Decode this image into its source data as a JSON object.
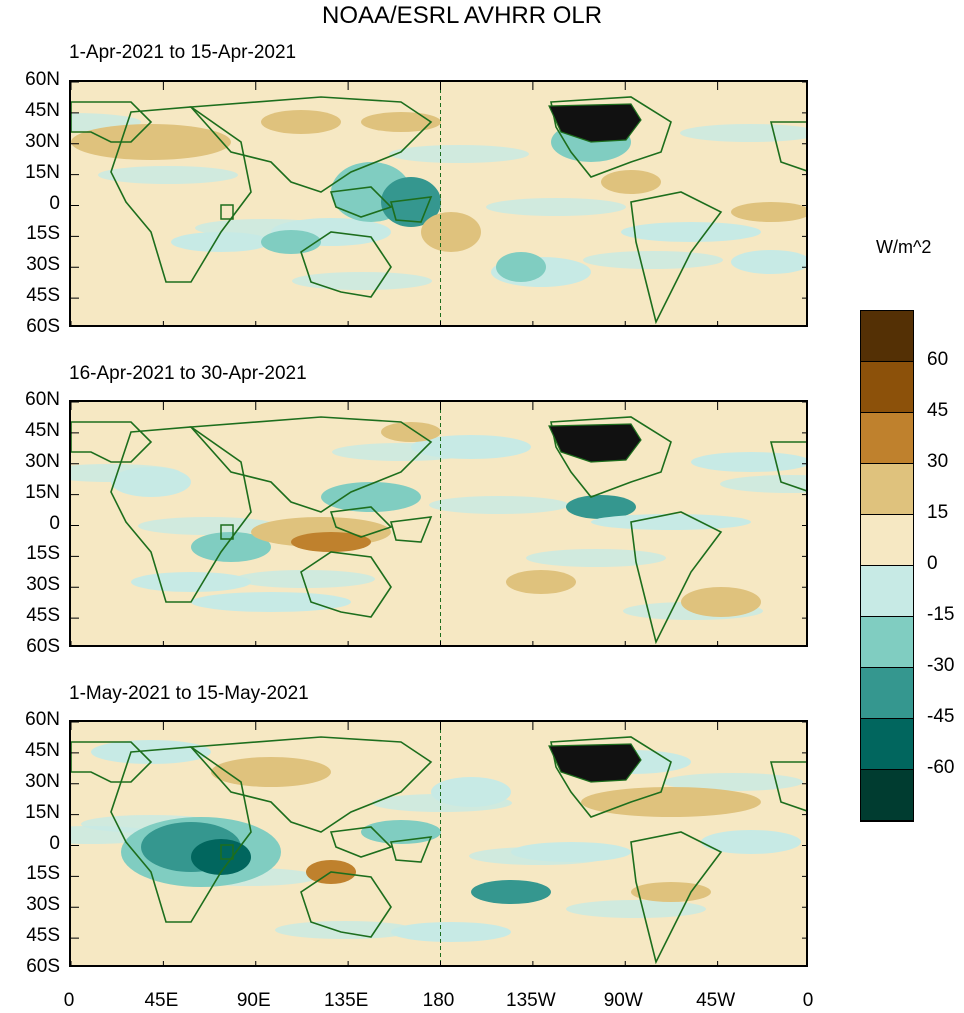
{
  "title": "NOAA/ESRL AVHRR OLR",
  "units": "W/m^2",
  "panels": [
    {
      "title": "1-Apr-2021 to 15-Apr-2021"
    },
    {
      "title": "16-Apr-2021 to 30-Apr-2021"
    },
    {
      "title": "1-May-2021 to 15-May-2021"
    }
  ],
  "lat_labels": [
    "60N",
    "45N",
    "30N",
    "15N",
    "0",
    "15S",
    "30S",
    "45S",
    "60S"
  ],
  "lon_labels": [
    "0",
    "45E",
    "90E",
    "135E",
    "180",
    "135W",
    "90W",
    "45W",
    "0"
  ],
  "colorbar": {
    "labels": [
      "60",
      "45",
      "30",
      "15",
      "0",
      "-15",
      "-30",
      "-45",
      "-60"
    ],
    "colors": [
      "#543005",
      "#8c510a",
      "#bf812d",
      "#dfc27d",
      "#f6e8c3",
      "#c7eae5",
      "#80cdc1",
      "#35978f",
      "#01665e",
      "#003c30"
    ]
  },
  "colors": {
    "coast": "#1d6e1d",
    "usa": "#111111"
  }
}
